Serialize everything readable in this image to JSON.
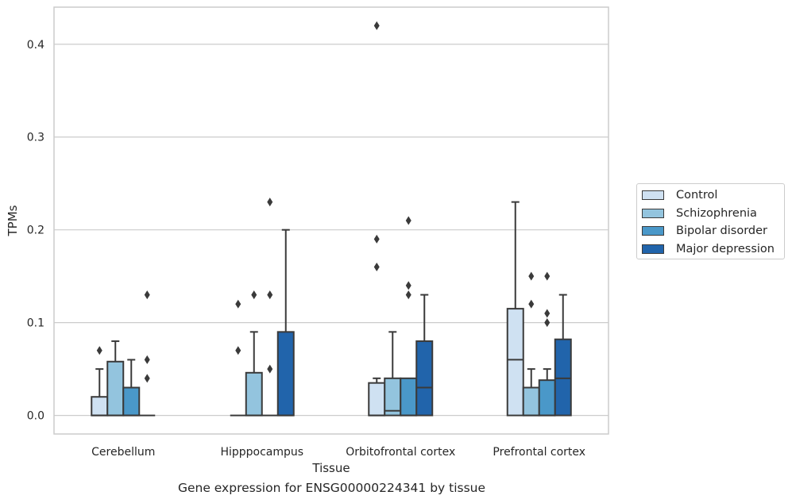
{
  "caption": "Gene expression for ENSG00000224341 by tissue",
  "colors": {
    "Control": "#cfe1f2",
    "Schizophrenia": "#93c4de",
    "Bipolar disorder": "#4a98c9",
    "Major depression": "#2164ab",
    "edge": "#3a3a3a",
    "grid": "#cccccc"
  },
  "chart_data": {
    "type": "box",
    "xlabel": "Tissue",
    "ylabel": "TPMs",
    "ylim": [
      -0.02,
      0.44
    ],
    "yticks": [
      0.0,
      0.1,
      0.2,
      0.3,
      0.4
    ],
    "ytick_labels": [
      "0.0",
      "0.1",
      "0.2",
      "0.3",
      "0.4"
    ],
    "grid": true,
    "legend_position": "right",
    "categories": [
      "Cerebellum",
      "Hipppocampus",
      "Orbitofrontal cortex",
      "Prefrontal cortex"
    ],
    "series": [
      {
        "name": "Control",
        "boxes": [
          {
            "q1": 0.0,
            "median": 0.0,
            "q3": 0.02,
            "whislo": 0.0,
            "whishi": 0.05,
            "fliers": [
              0.07
            ]
          },
          {
            "q1": 0.0,
            "median": 0.0,
            "q3": 0.0,
            "whislo": 0.0,
            "whishi": 0.0,
            "fliers": [
              0.07,
              0.12
            ]
          },
          {
            "q1": 0.0,
            "median": 0.0,
            "q3": 0.035,
            "whislo": 0.0,
            "whishi": 0.04,
            "fliers": [
              0.16,
              0.19,
              0.42
            ]
          },
          {
            "q1": 0.0,
            "median": 0.06,
            "q3": 0.115,
            "whislo": 0.0,
            "whishi": 0.23,
            "fliers": []
          }
        ]
      },
      {
        "name": "Schizophrenia",
        "boxes": [
          {
            "q1": 0.0,
            "median": 0.0,
            "q3": 0.058,
            "whislo": 0.0,
            "whishi": 0.08,
            "fliers": []
          },
          {
            "q1": 0.0,
            "median": 0.0,
            "q3": 0.046,
            "whislo": 0.0,
            "whishi": 0.09,
            "fliers": [
              0.13
            ]
          },
          {
            "q1": 0.0,
            "median": 0.005,
            "q3": 0.04,
            "whislo": 0.0,
            "whishi": 0.09,
            "fliers": []
          },
          {
            "q1": 0.0,
            "median": 0.0,
            "q3": 0.03,
            "whislo": 0.0,
            "whishi": 0.05,
            "fliers": [
              0.12,
              0.15
            ]
          }
        ]
      },
      {
        "name": "Bipolar disorder",
        "boxes": [
          {
            "q1": 0.0,
            "median": 0.0,
            "q3": 0.03,
            "whislo": 0.0,
            "whishi": 0.06,
            "fliers": []
          },
          {
            "q1": 0.0,
            "median": 0.0,
            "q3": 0.0,
            "whislo": 0.0,
            "whishi": 0.0,
            "fliers": [
              0.05,
              0.13,
              0.23
            ]
          },
          {
            "q1": 0.0,
            "median": 0.0,
            "q3": 0.04,
            "whislo": 0.0,
            "whishi": 0.04,
            "fliers": [
              0.13,
              0.14,
              0.21
            ]
          },
          {
            "q1": 0.0,
            "median": 0.0,
            "q3": 0.038,
            "whislo": 0.0,
            "whishi": 0.05,
            "fliers": [
              0.1,
              0.11,
              0.15
            ]
          }
        ]
      },
      {
        "name": "Major depression",
        "boxes": [
          {
            "q1": 0.0,
            "median": 0.0,
            "q3": 0.0,
            "whislo": 0.0,
            "whishi": 0.0,
            "fliers": [
              0.04,
              0.06,
              0.13
            ]
          },
          {
            "q1": 0.0,
            "median": 0.0,
            "q3": 0.09,
            "whislo": 0.0,
            "whishi": 0.2,
            "fliers": []
          },
          {
            "q1": 0.0,
            "median": 0.03,
            "q3": 0.08,
            "whislo": 0.0,
            "whishi": 0.13,
            "fliers": []
          },
          {
            "q1": 0.0,
            "median": 0.04,
            "q3": 0.082,
            "whislo": 0.0,
            "whishi": 0.13,
            "fliers": []
          }
        ]
      }
    ]
  }
}
